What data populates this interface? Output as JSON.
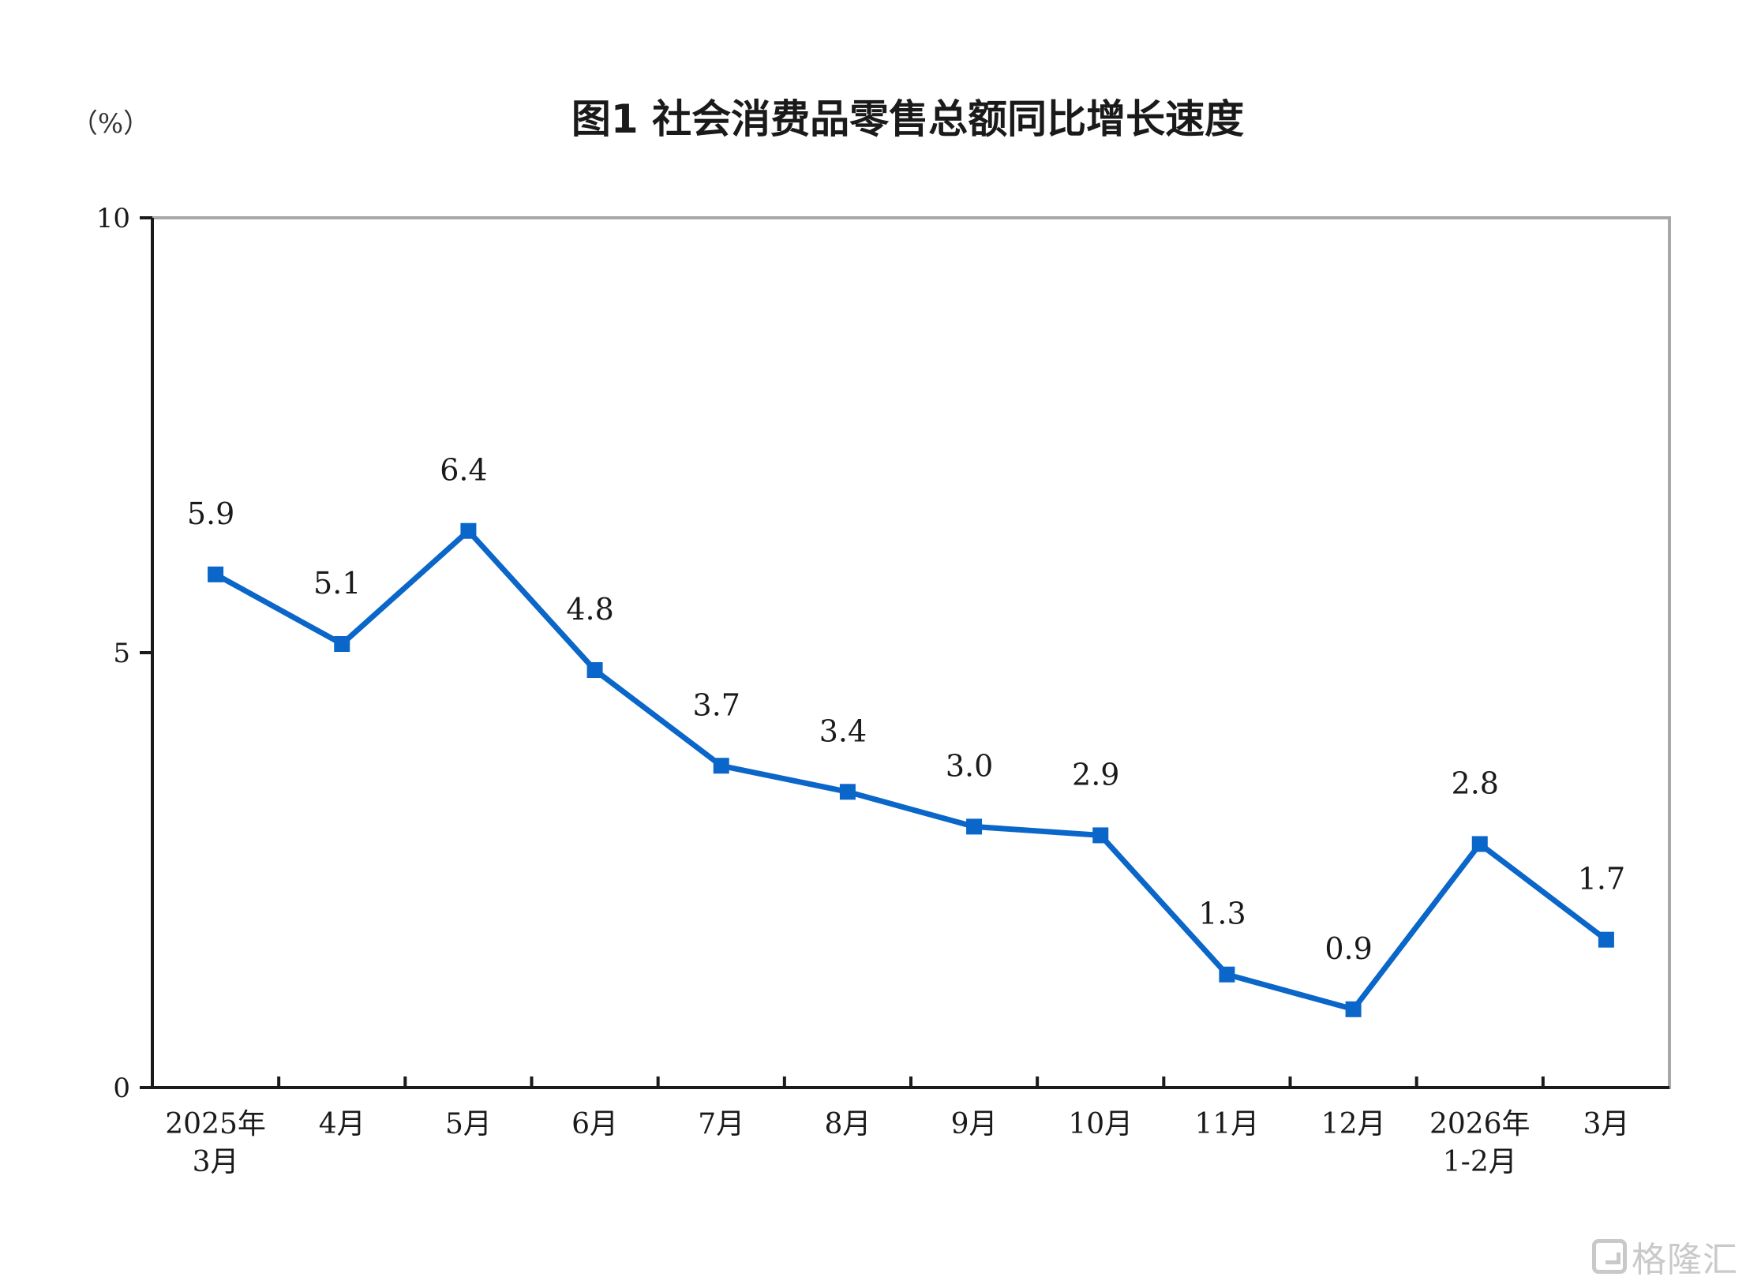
{
  "chart_data": {
    "type": "line",
    "title": "图1  社会消费品零售总额同比增长速度",
    "y_unit_label": "（%）",
    "categories": [
      [
        "2025年",
        "3月"
      ],
      [
        "4月"
      ],
      [
        "5月"
      ],
      [
        "6月"
      ],
      [
        "7月"
      ],
      [
        "8月"
      ],
      [
        "9月"
      ],
      [
        "10月"
      ],
      [
        "11月"
      ],
      [
        "12月"
      ],
      [
        "2026年",
        "1-2月"
      ],
      [
        "3月"
      ]
    ],
    "series": [
      {
        "values": [
          5.9,
          5.1,
          6.4,
          4.8,
          3.7,
          3.4,
          3.0,
          2.9,
          1.3,
          0.9,
          2.8,
          1.7
        ],
        "labels": [
          "5.9",
          "5.1",
          "6.4",
          "4.8",
          "3.7",
          "3.4",
          "3.0",
          "2.9",
          "1.3",
          "0.9",
          "2.8",
          "1.7"
        ],
        "color": "#0a66c8"
      }
    ],
    "ylim": [
      0,
      10
    ],
    "yticks": [
      "0",
      "5",
      "10"
    ],
    "grid": false
  },
  "watermark": {
    "text": "格隆汇",
    "icon": "gelonghui-logo-icon"
  }
}
